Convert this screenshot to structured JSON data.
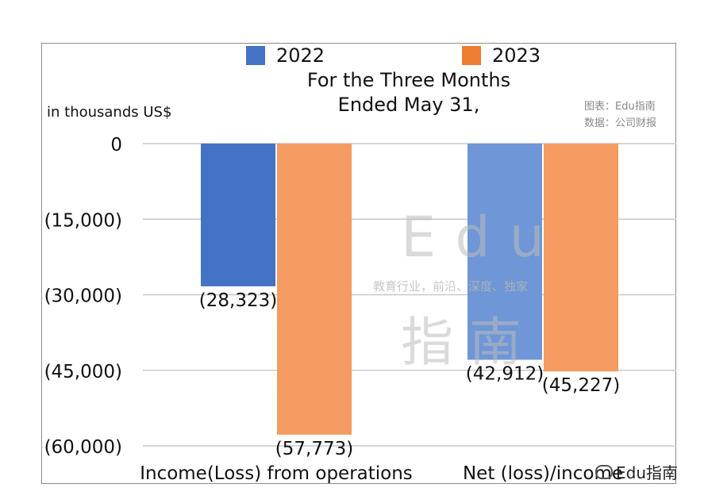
{
  "chart_data": {
    "type": "bar",
    "title": "For the Three Months Ended May 31,",
    "title_lines": [
      "For the Three Months",
      "Ended May 31,"
    ],
    "ylabel": "in thousands US$",
    "categories": [
      "Income(Loss) from operations",
      "Net (loss)/income"
    ],
    "series": [
      {
        "name": "2022",
        "values": [
          -28323,
          -42912
        ],
        "labels": [
          "(28,323)",
          "(42,912)"
        ],
        "colors": [
          "#4472c4",
          "#6f96d6"
        ]
      },
      {
        "name": "2023",
        "values": [
          -57773,
          -45227
        ],
        "labels": [
          "(57,773)",
          "(45,227)"
        ],
        "colors": [
          "#f39b61",
          "#f39b61"
        ]
      }
    ],
    "ylim": [
      -60000,
      0
    ],
    "yticks": [
      0,
      -15000,
      -30000,
      -45000,
      -60000
    ],
    "ytick_labels": [
      "0",
      "(15,000)",
      "(30,000)",
      "(45,000)",
      "(60,000)"
    ],
    "grid": true,
    "legend_position": "top",
    "legend_colors": [
      "#4472c4",
      "#ed7d31"
    ]
  },
  "credit": {
    "line1": "图表：Edu指南",
    "line2": "数据：公司财报"
  },
  "watermark": {
    "main": "Edu",
    "tagline": "教育行业，前沿、深度、独家",
    "cn": "指南"
  },
  "corner_badge": "Edu指南"
}
